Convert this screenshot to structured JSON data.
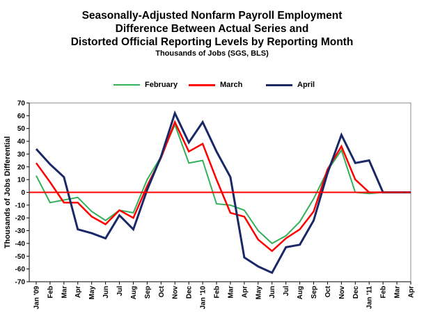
{
  "chart_data": {
    "type": "line",
    "title_lines": [
      "Seasonally-Adjusted Nonfarm Payroll Employment",
      "Difference Between Actual Series and",
      "Distorted Official Reporting Levels by Reporting Month"
    ],
    "subtitle": "Thousands of Jobs (SGS, BLS)",
    "xlabel": "",
    "ylabel": "Thousands of Jobs Differential",
    "ylim": [
      -70,
      70
    ],
    "ytick_step": 10,
    "grid": false,
    "legend_position": "top-center",
    "categories": [
      "Jan '09",
      "Feb",
      "Mar",
      "Apr",
      "May",
      "Jun",
      "Jul",
      "Aug",
      "Sep",
      "Oct",
      "Nov",
      "Dec",
      "Jan '10",
      "Feb",
      "Mar",
      "Apr",
      "May",
      "Jun",
      "Jul",
      "Aug",
      "Sep",
      "Oct",
      "Nov",
      "Dec",
      "Jan '11",
      "Feb",
      "Mar",
      "Apr"
    ],
    "reference_line": {
      "value": 0,
      "color": "#ff0000"
    },
    "series": [
      {
        "name": "February",
        "color": "#33b05a",
        "width": 2,
        "values": [
          13,
          -8,
          -6,
          -4,
          -15,
          -22,
          -14,
          -16,
          10,
          28,
          53,
          23,
          25,
          -9,
          -10,
          -14,
          -30,
          -40,
          -34,
          -23,
          -5,
          17,
          33,
          0,
          -1,
          0,
          0,
          0
        ]
      },
      {
        "name": "March",
        "color": "#ff0000",
        "width": 2.5,
        "values": [
          23,
          8,
          -8,
          -8,
          -19,
          -25,
          -14,
          -20,
          5,
          27,
          55,
          32,
          38,
          10,
          -16,
          -19,
          -37,
          -46,
          -36,
          -29,
          -15,
          18,
          36,
          10,
          0,
          0,
          0,
          0
        ]
      },
      {
        "name": "April",
        "color": "#1a2866",
        "width": 3,
        "values": [
          34,
          22,
          12,
          -29,
          -32,
          -36,
          -18,
          -29,
          2,
          28,
          62,
          39,
          55,
          32,
          12,
          -51,
          -58,
          -63,
          -43,
          -41,
          -22,
          15,
          45,
          23,
          25,
          0,
          0,
          0
        ]
      }
    ]
  }
}
